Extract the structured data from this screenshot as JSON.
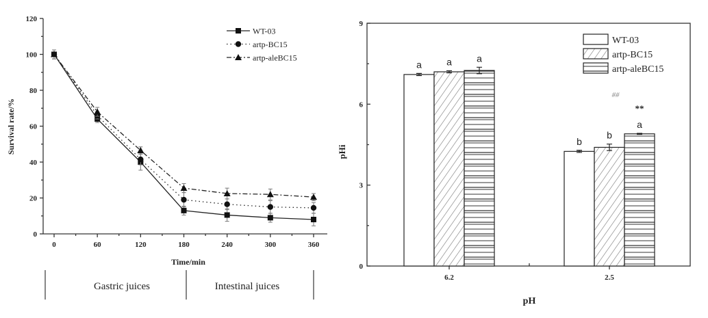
{
  "chart_data": [
    {
      "type": "line",
      "title": "",
      "xlabel": "Time/min",
      "ylabel": "Survival rate/%",
      "xlim": [
        0,
        360
      ],
      "ylim": [
        0,
        120
      ],
      "x": [
        0,
        60,
        120,
        180,
        240,
        300,
        360
      ],
      "xticks": [
        "0",
        "60",
        "120",
        "180",
        "240",
        "300",
        "360"
      ],
      "yticks": [
        "0",
        "20",
        "40",
        "60",
        "80",
        "100",
        "120"
      ],
      "legend_position": "top-right",
      "series": [
        {
          "name": "WT-03",
          "style": "solid",
          "marker": "square",
          "values": [
            100,
            64,
            40,
            13,
            10.5,
            9,
            8
          ],
          "errors": [
            2.5,
            2,
            4.5,
            2.5,
            3.5,
            2.5,
            3.5
          ]
        },
        {
          "name": "artp-BC15",
          "style": "dotted",
          "marker": "circle",
          "values": [
            100,
            66,
            41.5,
            19,
            16.5,
            15,
            14.5
          ],
          "errors": [
            2.5,
            2,
            3,
            4,
            3,
            3.5,
            3
          ]
        },
        {
          "name": "artp-aleBC15",
          "style": "dashdot",
          "marker": "triangle",
          "values": [
            100,
            68,
            46.5,
            25.5,
            22.5,
            22,
            20.5
          ],
          "errors": [
            2.5,
            2.5,
            2,
            2.5,
            3,
            3,
            2
          ]
        }
      ],
      "phases": [
        {
          "label": "Gastric juices",
          "range": [
            0,
            180
          ]
        },
        {
          "label": "Intestinal juices",
          "range": [
            180,
            360
          ]
        }
      ]
    },
    {
      "type": "bar",
      "title": "",
      "xlabel": "pH",
      "ylabel": "pHi",
      "ylim": [
        0,
        9
      ],
      "yticks": [
        "0",
        "3",
        "6",
        "9"
      ],
      "categories": [
        "6.2",
        "2.5"
      ],
      "legend_position": "top-right",
      "series": [
        {
          "name": "WT-03",
          "pattern": "none",
          "values": [
            7.1,
            4.25
          ],
          "errors": [
            0.04,
            0.04
          ],
          "labels": [
            "a",
            "b"
          ]
        },
        {
          "name": "artp-BC15",
          "pattern": "diagonal",
          "values": [
            7.2,
            4.4
          ],
          "errors": [
            0.04,
            0.12
          ],
          "labels": [
            "a",
            "b"
          ]
        },
        {
          "name": "artp-aleBC15",
          "pattern": "horizontal",
          "values": [
            7.25,
            4.9
          ],
          "errors": [
            0.12,
            0.02
          ],
          "labels": [
            "a",
            "a"
          ]
        }
      ],
      "annotations": [
        {
          "text": "##",
          "category": "2.5"
        },
        {
          "text": "**",
          "category": "2.5",
          "series": "artp-aleBC15"
        }
      ]
    }
  ]
}
